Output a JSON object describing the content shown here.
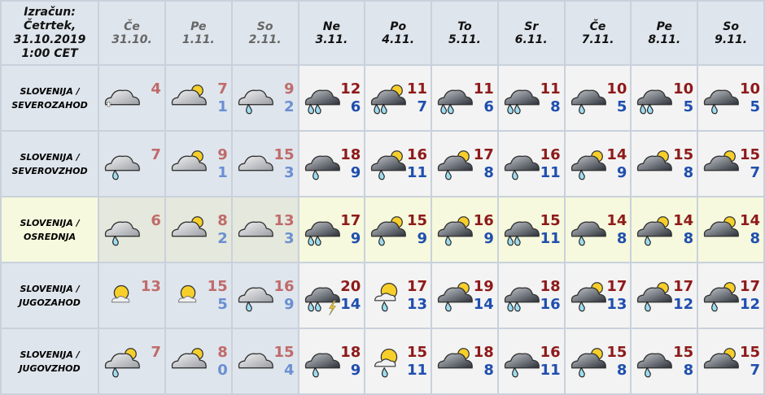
{
  "header": {
    "calc_lines": [
      "Izračun:",
      "Četrtek,",
      "31.10.2019",
      "1:00 CET"
    ]
  },
  "days": [
    {
      "day": "Če",
      "date": "31.10.",
      "past": true
    },
    {
      "day": "Pe",
      "date": "1.11.",
      "past": true
    },
    {
      "day": "So",
      "date": "2.11.",
      "past": true
    },
    {
      "day": "Ne",
      "date": "3.11."
    },
    {
      "day": "Po",
      "date": "4.11."
    },
    {
      "day": "To",
      "date": "5.11."
    },
    {
      "day": "Sr",
      "date": "6.11."
    },
    {
      "day": "Če",
      "date": "7.11."
    },
    {
      "day": "Pe",
      "date": "8.11."
    },
    {
      "day": "So",
      "date": "9.11."
    }
  ],
  "colors": {
    "max": "#8e1a1a",
    "min": "#1f4fae",
    "past_max": "#bf6b6b",
    "past_min": "#6a8fd2",
    "highlight": "#f6f9dd"
  },
  "regions": [
    {
      "name": [
        "SLOVENIJA /",
        "SEVEROZAHOD"
      ],
      "cells": [
        {
          "icon": "light-cloud-snow",
          "max": "4",
          "min": ""
        },
        {
          "icon": "light-partly-cloudy",
          "max": "7",
          "min": "1"
        },
        {
          "icon": "light-cloud-rain",
          "max": "9",
          "min": "2"
        },
        {
          "icon": "dark-cloud-heavy-rain",
          "max": "12",
          "min": "6"
        },
        {
          "icon": "dark-cloud-sun-heavy-rain",
          "max": "11",
          "min": "7"
        },
        {
          "icon": "dark-cloud-heavy-rain",
          "max": "11",
          "min": "6"
        },
        {
          "icon": "dark-cloud-heavy-rain",
          "max": "11",
          "min": "8"
        },
        {
          "icon": "dark-cloud-rain",
          "max": "10",
          "min": "5"
        },
        {
          "icon": "dark-cloud-heavy-rain",
          "max": "10",
          "min": "5"
        },
        {
          "icon": "dark-cloud-rain",
          "max": "10",
          "min": "5"
        }
      ]
    },
    {
      "name": [
        "SLOVENIJA /",
        "SEVEROVZHOD"
      ],
      "cells": [
        {
          "icon": "light-cloud-rain",
          "max": "7",
          "min": ""
        },
        {
          "icon": "light-partly-cloudy",
          "max": "9",
          "min": "1"
        },
        {
          "icon": "light-cloud",
          "max": "15",
          "min": "3"
        },
        {
          "icon": "dark-cloud-rain",
          "max": "18",
          "min": "9"
        },
        {
          "icon": "dark-cloud-sun-rain",
          "max": "16",
          "min": "11"
        },
        {
          "icon": "dark-cloud-sun-rain",
          "max": "17",
          "min": "8"
        },
        {
          "icon": "dark-cloud-rain",
          "max": "16",
          "min": "11"
        },
        {
          "icon": "dark-cloud-sun-rain",
          "max": "14",
          "min": "9"
        },
        {
          "icon": "dark-cloud-sun",
          "max": "15",
          "min": "8"
        },
        {
          "icon": "dark-cloud-sun",
          "max": "15",
          "min": "7"
        }
      ]
    },
    {
      "name": [
        "SLOVENIJA /",
        "OSREDNJA"
      ],
      "highlight": true,
      "cells": [
        {
          "icon": "light-cloud-rain",
          "max": "6",
          "min": ""
        },
        {
          "icon": "light-partly-cloudy",
          "max": "8",
          "min": "2"
        },
        {
          "icon": "light-cloud",
          "max": "13",
          "min": "3"
        },
        {
          "icon": "dark-cloud-heavy-rain",
          "max": "17",
          "min": "9"
        },
        {
          "icon": "dark-cloud-sun-rain",
          "max": "15",
          "min": "9"
        },
        {
          "icon": "dark-cloud-sun-rain",
          "max": "16",
          "min": "9"
        },
        {
          "icon": "dark-cloud-heavy-rain",
          "max": "15",
          "min": "11"
        },
        {
          "icon": "dark-cloud-rain",
          "max": "14",
          "min": "8"
        },
        {
          "icon": "dark-cloud-sun-rain",
          "max": "14",
          "min": "8"
        },
        {
          "icon": "dark-cloud-sun",
          "max": "14",
          "min": "8"
        }
      ]
    },
    {
      "name": [
        "SLOVENIJA /",
        "JUGOZAHOD"
      ],
      "cells": [
        {
          "icon": "sun-small-cloud",
          "max": "13",
          "min": ""
        },
        {
          "icon": "sun-small-cloud",
          "max": "15",
          "min": "5"
        },
        {
          "icon": "light-cloud-rain",
          "max": "16",
          "min": "9"
        },
        {
          "icon": "dark-cloud-thunderstorm",
          "max": "20",
          "min": "14"
        },
        {
          "icon": "sun-cloud-rain",
          "max": "17",
          "min": "13"
        },
        {
          "icon": "dark-cloud-sun-rain",
          "max": "19",
          "min": "14"
        },
        {
          "icon": "dark-cloud-heavy-rain",
          "max": "18",
          "min": "16"
        },
        {
          "icon": "dark-cloud-sun-rain",
          "max": "17",
          "min": "13"
        },
        {
          "icon": "dark-cloud-sun-rain",
          "max": "17",
          "min": "12"
        },
        {
          "icon": "dark-cloud-sun-rain",
          "max": "17",
          "min": "12"
        }
      ]
    },
    {
      "name": [
        "SLOVENIJA /",
        "JUGOVZHOD"
      ],
      "cells": [
        {
          "icon": "light-cloud-sun-rain",
          "max": "7",
          "min": ""
        },
        {
          "icon": "light-partly-cloudy",
          "max": "8",
          "min": "0"
        },
        {
          "icon": "light-cloud",
          "max": "15",
          "min": "4"
        },
        {
          "icon": "dark-cloud-rain",
          "max": "18",
          "min": "9"
        },
        {
          "icon": "sun-cloud-rain",
          "max": "15",
          "min": "11"
        },
        {
          "icon": "dark-cloud-sun",
          "max": "18",
          "min": "8"
        },
        {
          "icon": "dark-cloud-rain",
          "max": "16",
          "min": "11"
        },
        {
          "icon": "dark-cloud-sun-rain",
          "max": "15",
          "min": "8"
        },
        {
          "icon": "dark-cloud-rain",
          "max": "15",
          "min": "8"
        },
        {
          "icon": "dark-cloud-sun",
          "max": "15",
          "min": "7"
        }
      ]
    }
  ]
}
